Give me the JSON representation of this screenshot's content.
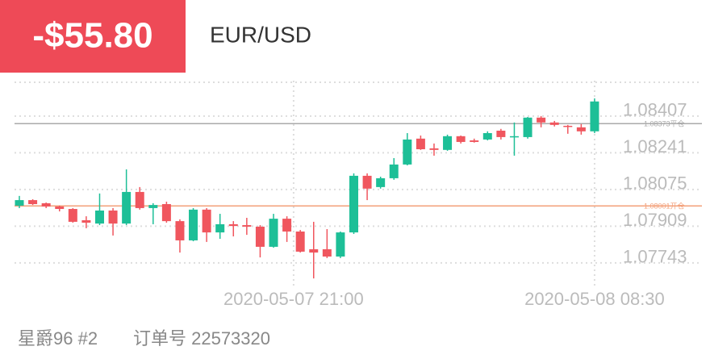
{
  "header": {
    "pnl": "-$55.80",
    "symbol": "EUR/USD"
  },
  "chart_data": {
    "type": "candlestick",
    "categories": [
      null,
      null,
      null,
      null,
      null,
      null,
      null,
      null,
      null,
      null,
      null,
      null,
      null,
      null,
      null,
      null,
      null,
      null,
      null,
      null,
      null,
      null,
      null,
      null,
      null,
      null,
      null,
      null,
      null,
      null,
      null,
      null,
      null,
      null,
      null,
      null,
      null,
      null,
      null,
      null,
      null,
      null,
      null,
      null
    ],
    "open": [
      1.08002,
      1.08027,
      1.08013,
      1.07998,
      1.07987,
      1.07936,
      1.07921,
      1.0798,
      1.07921,
      1.08064,
      1.07991,
      1.08009,
      1.07932,
      1.07845,
      1.07984,
      1.07881,
      1.07918,
      1.07914,
      1.07907,
      1.07816,
      1.07943,
      1.07885,
      1.07805,
      1.07805,
      1.07772,
      1.07881,
      1.08137,
      1.08086,
      1.08126,
      1.08188,
      1.08305,
      1.08261,
      1.08254,
      1.08316,
      1.08297,
      1.08301,
      1.08341,
      1.08312,
      1.08312,
      1.084,
      1.08378,
      1.08363,
      1.08356,
      1.08338
    ],
    "high": [
      1.08046,
      1.08031,
      1.08016,
      1.08002,
      1.07991,
      1.07954,
      1.08057,
      1.07991,
      1.08166,
      1.08086,
      1.08013,
      1.0802,
      1.0794,
      1.07991,
      1.07991,
      1.07965,
      1.07932,
      1.07947,
      1.07914,
      1.07965,
      1.07954,
      1.07892,
      1.07929,
      1.07896,
      1.07885,
      1.08148,
      1.08148,
      1.08133,
      1.08217,
      1.0833,
      1.08319,
      1.08283,
      1.08323,
      1.08319,
      1.08305,
      1.08338,
      1.08349,
      1.08378,
      1.08403,
      1.08407,
      1.08385,
      1.08367,
      1.08371,
      1.08487
    ],
    "low": [
      1.07991,
      1.08005,
      1.07991,
      1.07976,
      1.07925,
      1.079,
      1.07914,
      1.07867,
      1.07914,
      1.07984,
      1.07918,
      1.07925,
      1.0779,
      1.07841,
      1.07838,
      1.07852,
      1.07863,
      1.0787,
      1.07768,
      1.07812,
      1.07838,
      1.0779,
      1.07673,
      1.07765,
      1.07765,
      1.07874,
      1.08027,
      1.08079,
      1.08119,
      1.08184,
      1.08254,
      1.08228,
      1.0825,
      1.08283,
      1.08287,
      1.08297,
      1.08301,
      1.08228,
      1.08305,
      1.08356,
      1.0836,
      1.08327,
      1.08323,
      1.0833
    ],
    "close": [
      1.08027,
      1.08009,
      1.07998,
      1.07987,
      1.07929,
      1.07925,
      1.0798,
      1.07921,
      1.08064,
      1.07991,
      1.08005,
      1.07932,
      1.07845,
      1.07984,
      1.07881,
      1.07918,
      1.0791,
      1.07907,
      1.07816,
      1.07943,
      1.07885,
      1.07794,
      1.0779,
      1.07772,
      1.07881,
      1.08137,
      1.08079,
      1.08126,
      1.08188,
      1.08301,
      1.08257,
      1.08254,
      1.08316,
      1.0829,
      1.0829,
      1.0833,
      1.08312,
      1.08316,
      1.084,
      1.08378,
      1.08367,
      1.0836,
      1.08338,
      1.08473
    ],
    "up_color": "#1dbf97",
    "down_color": "#f0565e",
    "ylim": [
      1.07637,
      1.08567
    ],
    "yticks": [
      1.07743,
      1.07909,
      1.08075,
      1.08241,
      1.08407
    ],
    "xticks": [
      {
        "value": 20.5,
        "label": "2020-05-07 21:00"
      },
      {
        "value": 43,
        "label": "2020-05-08 08:30"
      }
    ],
    "grid": true,
    "reference_lines": [
      {
        "value": 1.08373,
        "label": "1.08373平仓",
        "color": "#aaaaaa"
      },
      {
        "value": 1.08001,
        "label": "1.08001开仓",
        "color": "#f3a07a"
      }
    ]
  },
  "footer": {
    "account": "星爵96 #2",
    "order": "订单号 22573320"
  }
}
